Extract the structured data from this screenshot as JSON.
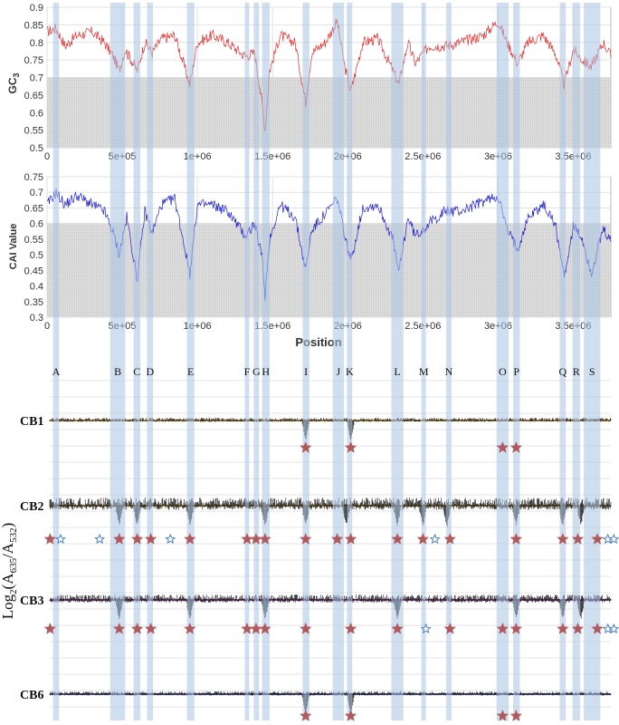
{
  "chart_data": [
    {
      "type": "line",
      "panel": "gc3",
      "ylabel": "GC",
      "ylabel_sub": "3",
      "xlim": [
        0,
        3750000
      ],
      "ylim": [
        0.5,
        0.9
      ],
      "yticks": [
        "0.5",
        "0.55",
        "0.6",
        "0.65",
        "0.7",
        "0.75",
        "0.8",
        "0.85",
        "0.9"
      ],
      "xticks": [
        "0",
        "5e+05",
        "1e+06",
        "1.5e+06",
        "2e+06",
        "2.5e+06",
        "3e+06",
        "3.5e+06"
      ],
      "baseline": 0.7,
      "color": "#e03030",
      "grid": true,
      "anchors": [
        [
          0,
          0.83
        ],
        [
          60000,
          0.84
        ],
        [
          120000,
          0.79
        ],
        [
          200000,
          0.82
        ],
        [
          300000,
          0.83
        ],
        [
          380000,
          0.8
        ],
        [
          440000,
          0.76
        ],
        [
          480000,
          0.72
        ],
        [
          520000,
          0.78
        ],
        [
          600000,
          0.72
        ],
        [
          650000,
          0.8
        ],
        [
          700000,
          0.77
        ],
        [
          760000,
          0.81
        ],
        [
          850000,
          0.82
        ],
        [
          950000,
          0.68
        ],
        [
          1000000,
          0.8
        ],
        [
          1100000,
          0.82
        ],
        [
          1200000,
          0.8
        ],
        [
          1320000,
          0.76
        ],
        [
          1380000,
          0.77
        ],
        [
          1420000,
          0.66
        ],
        [
          1450000,
          0.55
        ],
        [
          1480000,
          0.72
        ],
        [
          1550000,
          0.82
        ],
        [
          1650000,
          0.8
        ],
        [
          1720000,
          0.63
        ],
        [
          1760000,
          0.77
        ],
        [
          1850000,
          0.8
        ],
        [
          1930000,
          0.86
        ],
        [
          1980000,
          0.73
        ],
        [
          2020000,
          0.66
        ],
        [
          2100000,
          0.8
        ],
        [
          2200000,
          0.81
        ],
        [
          2300000,
          0.72
        ],
        [
          2340000,
          0.68
        ],
        [
          2400000,
          0.8
        ],
        [
          2450000,
          0.74
        ],
        [
          2540000,
          0.79
        ],
        [
          2650000,
          0.79
        ],
        [
          2750000,
          0.8
        ],
        [
          2900000,
          0.82
        ],
        [
          3000000,
          0.86
        ],
        [
          3060000,
          0.8
        ],
        [
          3130000,
          0.74
        ],
        [
          3200000,
          0.8
        ],
        [
          3300000,
          0.82
        ],
        [
          3380000,
          0.77
        ],
        [
          3440000,
          0.68
        ],
        [
          3500000,
          0.78
        ],
        [
          3560000,
          0.75
        ],
        [
          3620000,
          0.73
        ],
        [
          3700000,
          0.8
        ],
        [
          3750000,
          0.76
        ]
      ]
    },
    {
      "type": "line",
      "panel": "cai",
      "ylabel": "CAI Value",
      "xlabel": "Position",
      "xlim": [
        0,
        3750000
      ],
      "ylim": [
        0.3,
        0.75
      ],
      "yticks": [
        "0.3",
        "0.35",
        "0.4",
        "0.45",
        "0.5",
        "0.55",
        "0.6",
        "0.65",
        "0.7",
        "0.75"
      ],
      "xticks": [
        "0",
        "5e+05",
        "1e+06",
        "1.5e+06",
        "2e+06",
        "2.5e+06",
        "3e+06",
        "3.5e+06"
      ],
      "baseline": 0.6,
      "color": "#2020d0",
      "grid": true,
      "anchors": [
        [
          0,
          0.66
        ],
        [
          60000,
          0.7
        ],
        [
          120000,
          0.66
        ],
        [
          200000,
          0.69
        ],
        [
          300000,
          0.66
        ],
        [
          380000,
          0.64
        ],
        [
          440000,
          0.57
        ],
        [
          480000,
          0.5
        ],
        [
          530000,
          0.62
        ],
        [
          600000,
          0.42
        ],
        [
          650000,
          0.64
        ],
        [
          700000,
          0.57
        ],
        [
          760000,
          0.66
        ],
        [
          850000,
          0.68
        ],
        [
          950000,
          0.44
        ],
        [
          1000000,
          0.66
        ],
        [
          1100000,
          0.66
        ],
        [
          1200000,
          0.64
        ],
        [
          1320000,
          0.56
        ],
        [
          1380000,
          0.6
        ],
        [
          1430000,
          0.49
        ],
        [
          1450000,
          0.37
        ],
        [
          1480000,
          0.55
        ],
        [
          1550000,
          0.66
        ],
        [
          1650000,
          0.62
        ],
        [
          1720000,
          0.45
        ],
        [
          1760000,
          0.58
        ],
        [
          1850000,
          0.63
        ],
        [
          1930000,
          0.68
        ],
        [
          1990000,
          0.54
        ],
        [
          2020000,
          0.48
        ],
        [
          2100000,
          0.65
        ],
        [
          2200000,
          0.66
        ],
        [
          2300000,
          0.55
        ],
        [
          2340000,
          0.44
        ],
        [
          2400000,
          0.62
        ],
        [
          2450000,
          0.56
        ],
        [
          2540000,
          0.6
        ],
        [
          2650000,
          0.64
        ],
        [
          2750000,
          0.64
        ],
        [
          2900000,
          0.67
        ],
        [
          3000000,
          0.69
        ],
        [
          3060000,
          0.58
        ],
        [
          3130000,
          0.52
        ],
        [
          3200000,
          0.62
        ],
        [
          3300000,
          0.66
        ],
        [
          3380000,
          0.6
        ],
        [
          3440000,
          0.43
        ],
        [
          3500000,
          0.59
        ],
        [
          3560000,
          0.55
        ],
        [
          3620000,
          0.44
        ],
        [
          3700000,
          0.58
        ],
        [
          3750000,
          0.54
        ]
      ]
    },
    {
      "type": "line",
      "panel": "hybridization",
      "ylabel_base": "Log",
      "ylabel_base_sub": "2",
      "ylabel_open": "(A",
      "ylabel_num_sub": "635",
      "ylabel_mid": "/A",
      "ylabel_den_sub": "532",
      "ylabel_close": ")",
      "xlim": [
        0,
        3750000
      ],
      "series": [
        {
          "name": "CB1",
          "dips": [
            1720000,
            2020000
          ],
          "stars_red": [
            1720000,
            2020000,
            3030000,
            3120000
          ],
          "stars_blue": []
        },
        {
          "name": "CB2",
          "dips": [
            480000,
            600000,
            950000,
            1450000,
            1720000,
            1990000,
            2330000,
            2500000,
            2660000,
            3120000,
            3430000,
            3550000
          ],
          "stars_red": [
            20000,
            480000,
            600000,
            690000,
            950000,
            1330000,
            1390000,
            1450000,
            1720000,
            1930000,
            2020000,
            2330000,
            2500000,
            2680000,
            3120000,
            3430000,
            3530000,
            3660000
          ],
          "stars_blue": [
            90000,
            350000,
            820000,
            2580000,
            3730000,
            3770000
          ]
        },
        {
          "name": "CB3",
          "dips": [
            480000,
            950000,
            1450000,
            2330000,
            3120000,
            3430000,
            3550000
          ],
          "stars_red": [
            20000,
            480000,
            600000,
            690000,
            950000,
            1330000,
            1390000,
            1450000,
            1720000,
            2020000,
            2330000,
            2680000,
            3030000,
            3120000,
            3430000,
            3530000,
            3660000
          ],
          "stars_blue": [
            2520000,
            3730000,
            3770000
          ]
        },
        {
          "name": "CB6",
          "dips": [
            1720000,
            2020000
          ],
          "stars_red": [
            1720000,
            2020000,
            3030000,
            3120000
          ],
          "stars_blue": []
        }
      ]
    }
  ],
  "regions": [
    {
      "label": "A",
      "start": 40000,
      "end": 80000
    },
    {
      "label": "B",
      "start": 420000,
      "end": 520000
    },
    {
      "label": "C",
      "start": 575000,
      "end": 620000
    },
    {
      "label": "D",
      "start": 665000,
      "end": 705000
    },
    {
      "label": "E",
      "start": 930000,
      "end": 980000
    },
    {
      "label": "F",
      "start": 1315000,
      "end": 1345000
    },
    {
      "label": "G",
      "start": 1375000,
      "end": 1410000
    },
    {
      "label": "H",
      "start": 1430000,
      "end": 1480000
    },
    {
      "label": "I",
      "start": 1700000,
      "end": 1745000
    },
    {
      "label": "J",
      "start": 1900000,
      "end": 1975000
    },
    {
      "label": "K",
      "start": 1995000,
      "end": 2030000
    },
    {
      "label": "L",
      "start": 2290000,
      "end": 2370000
    },
    {
      "label": "M",
      "start": 2490000,
      "end": 2520000
    },
    {
      "label": "N",
      "start": 2655000,
      "end": 2690000
    },
    {
      "label": "O",
      "start": 2990000,
      "end": 3070000
    },
    {
      "label": "P",
      "start": 3100000,
      "end": 3145000
    },
    {
      "label": "Q",
      "start": 3410000,
      "end": 3450000
    },
    {
      "label": "R",
      "start": 3495000,
      "end": 3545000
    },
    {
      "label": "S",
      "start": 3570000,
      "end": 3680000
    }
  ],
  "colors": {
    "region": "#a9c4e4",
    "star_red": "#b05a5e",
    "star_blue": "#ffffff",
    "star_blue_stroke": "#4a80c4",
    "trace": "#111111",
    "trace_base_cb1": "#d8a040",
    "trace_base_cb2": "#d8a040",
    "trace_base_cb3": "#c050c0",
    "trace_base_cb6": "#6060c0"
  }
}
